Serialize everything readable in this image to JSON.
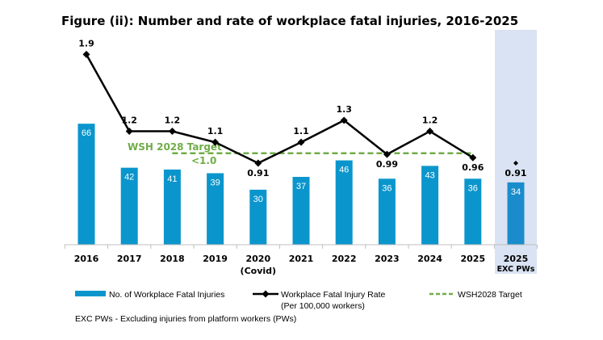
{
  "chart_data": {
    "type": "bar+line",
    "title": "Figure (ii): Number and rate of workplace fatal injuries, 2016-2025",
    "categories": [
      {
        "label": "2016"
      },
      {
        "label": "2017"
      },
      {
        "label": "2018"
      },
      {
        "label": "2019"
      },
      {
        "label": "2020",
        "sublabel": "(Covid)"
      },
      {
        "label": "2021"
      },
      {
        "label": "2022"
      },
      {
        "label": "2023"
      },
      {
        "label": "2024"
      },
      {
        "label": "2025"
      },
      {
        "label": "2025",
        "sublabel": "EXC PWs",
        "highlight": true
      }
    ],
    "series": [
      {
        "name": "No. of Workplace Fatal Injuries",
        "type": "bar",
        "values": [
          66,
          42,
          41,
          39,
          30,
          37,
          46,
          36,
          43,
          36,
          34
        ],
        "color": "#0a96cc",
        "highlight_color": "#1a8ccb"
      },
      {
        "name": "Workplace Fatal Injury Rate",
        "name_line2": "(Per 100,000 workers)",
        "type": "line",
        "values": [
          1.9,
          1.2,
          1.2,
          1.1,
          0.91,
          1.1,
          1.3,
          0.99,
          1.2,
          0.96,
          0.91
        ],
        "labels": [
          "1.9",
          "1.2",
          "1.2",
          "1.1",
          "0.91",
          "1.1",
          "1.3",
          "0.99",
          "1.2",
          "0.96",
          "0.91"
        ],
        "connected_points": 10,
        "color": "#000000"
      },
      {
        "name": "WSH2028 Target",
        "type": "reference-line",
        "value": 1.0,
        "from": "2018",
        "to": "2025",
        "color": "#70ad47",
        "annotation_line1": "WSH 2028 Target",
        "annotation_line2": "<1.0"
      }
    ],
    "highlight_band_color": "#dae3f3",
    "footnote": "EXC PWs - Excluding injuries from platform workers (PWs)",
    "grid": false,
    "legend": "bottom"
  }
}
